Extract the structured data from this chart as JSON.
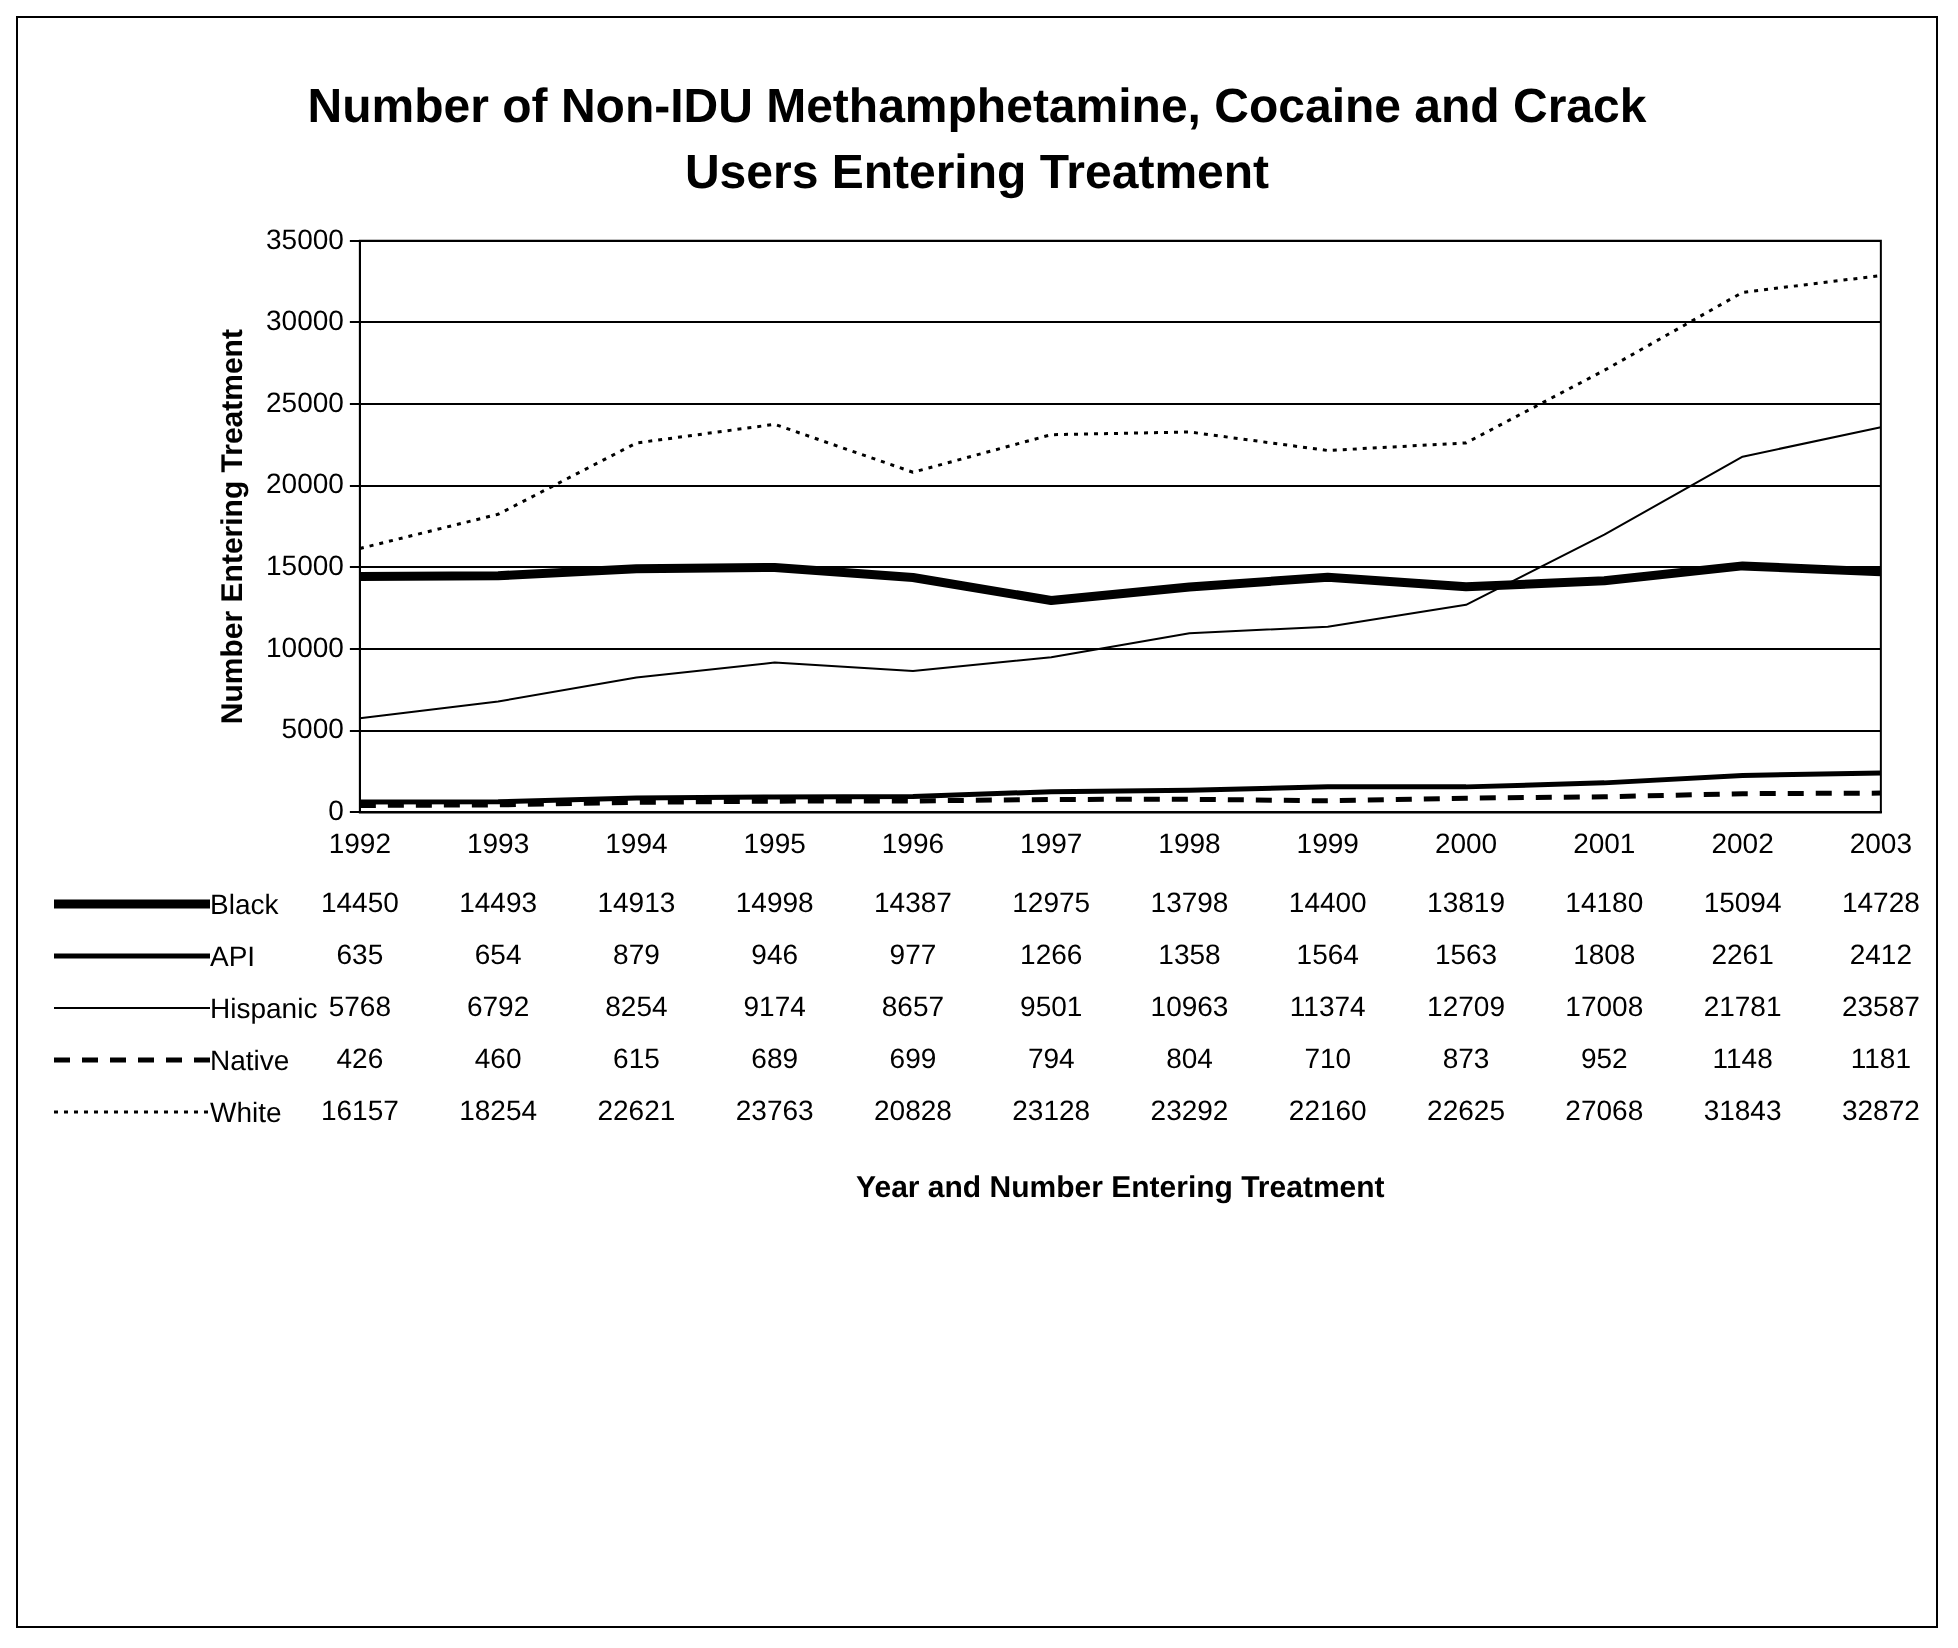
{
  "chart_data": {
    "type": "line",
    "title": "Number of Non-IDU Methamphetamine, Cocaine and Crack Users Entering Treatment",
    "annotations": [
      "Year and Number Entering Treatment"
    ],
    "ylabel": "Number Entering Treatment",
    "categories": [
      "1992",
      "1993",
      "1994",
      "1995",
      "1996",
      "1997",
      "1998",
      "1999",
      "2000",
      "2001",
      "2002",
      "2003"
    ],
    "series": [
      {
        "name": "Black",
        "color": "#000000",
        "line_style": "solid",
        "values": [
          14450,
          14493,
          14913,
          14998,
          14387,
          12975,
          13798,
          14400,
          13819,
          14180,
          15094,
          14728
        ]
      },
      {
        "name": "API",
        "color": "#000000",
        "line_style": "solid",
        "values": [
          635,
          654,
          879,
          946,
          977,
          1266,
          1358,
          1564,
          1563,
          1808,
          2261,
          2412
        ]
      },
      {
        "name": "Hispanic",
        "color": "#000000",
        "line_style": "solid",
        "values": [
          5768,
          6792,
          8254,
          9174,
          8657,
          9501,
          10963,
          11374,
          12709,
          17008,
          21781,
          23587
        ]
      },
      {
        "name": "Native",
        "color": "#000000",
        "line_style": "dashed",
        "values": [
          426,
          460,
          615,
          689,
          699,
          794,
          804,
          710,
          873,
          952,
          1148,
          1181
        ]
      },
      {
        "name": "White",
        "color": "#000000",
        "line_style": "dotted",
        "values": [
          16157,
          18254,
          22621,
          23763,
          20828,
          23128,
          23292,
          22160,
          22625,
          27068,
          31843,
          32872
        ]
      }
    ],
    "ylim": [
      0,
      35000
    ],
    "yticks": [
      0,
      5000,
      10000,
      15000,
      20000,
      25000,
      30000,
      35000
    ],
    "grid": "y",
    "legend": "bottom",
    "data_labels": true,
    "marker": "none"
  }
}
